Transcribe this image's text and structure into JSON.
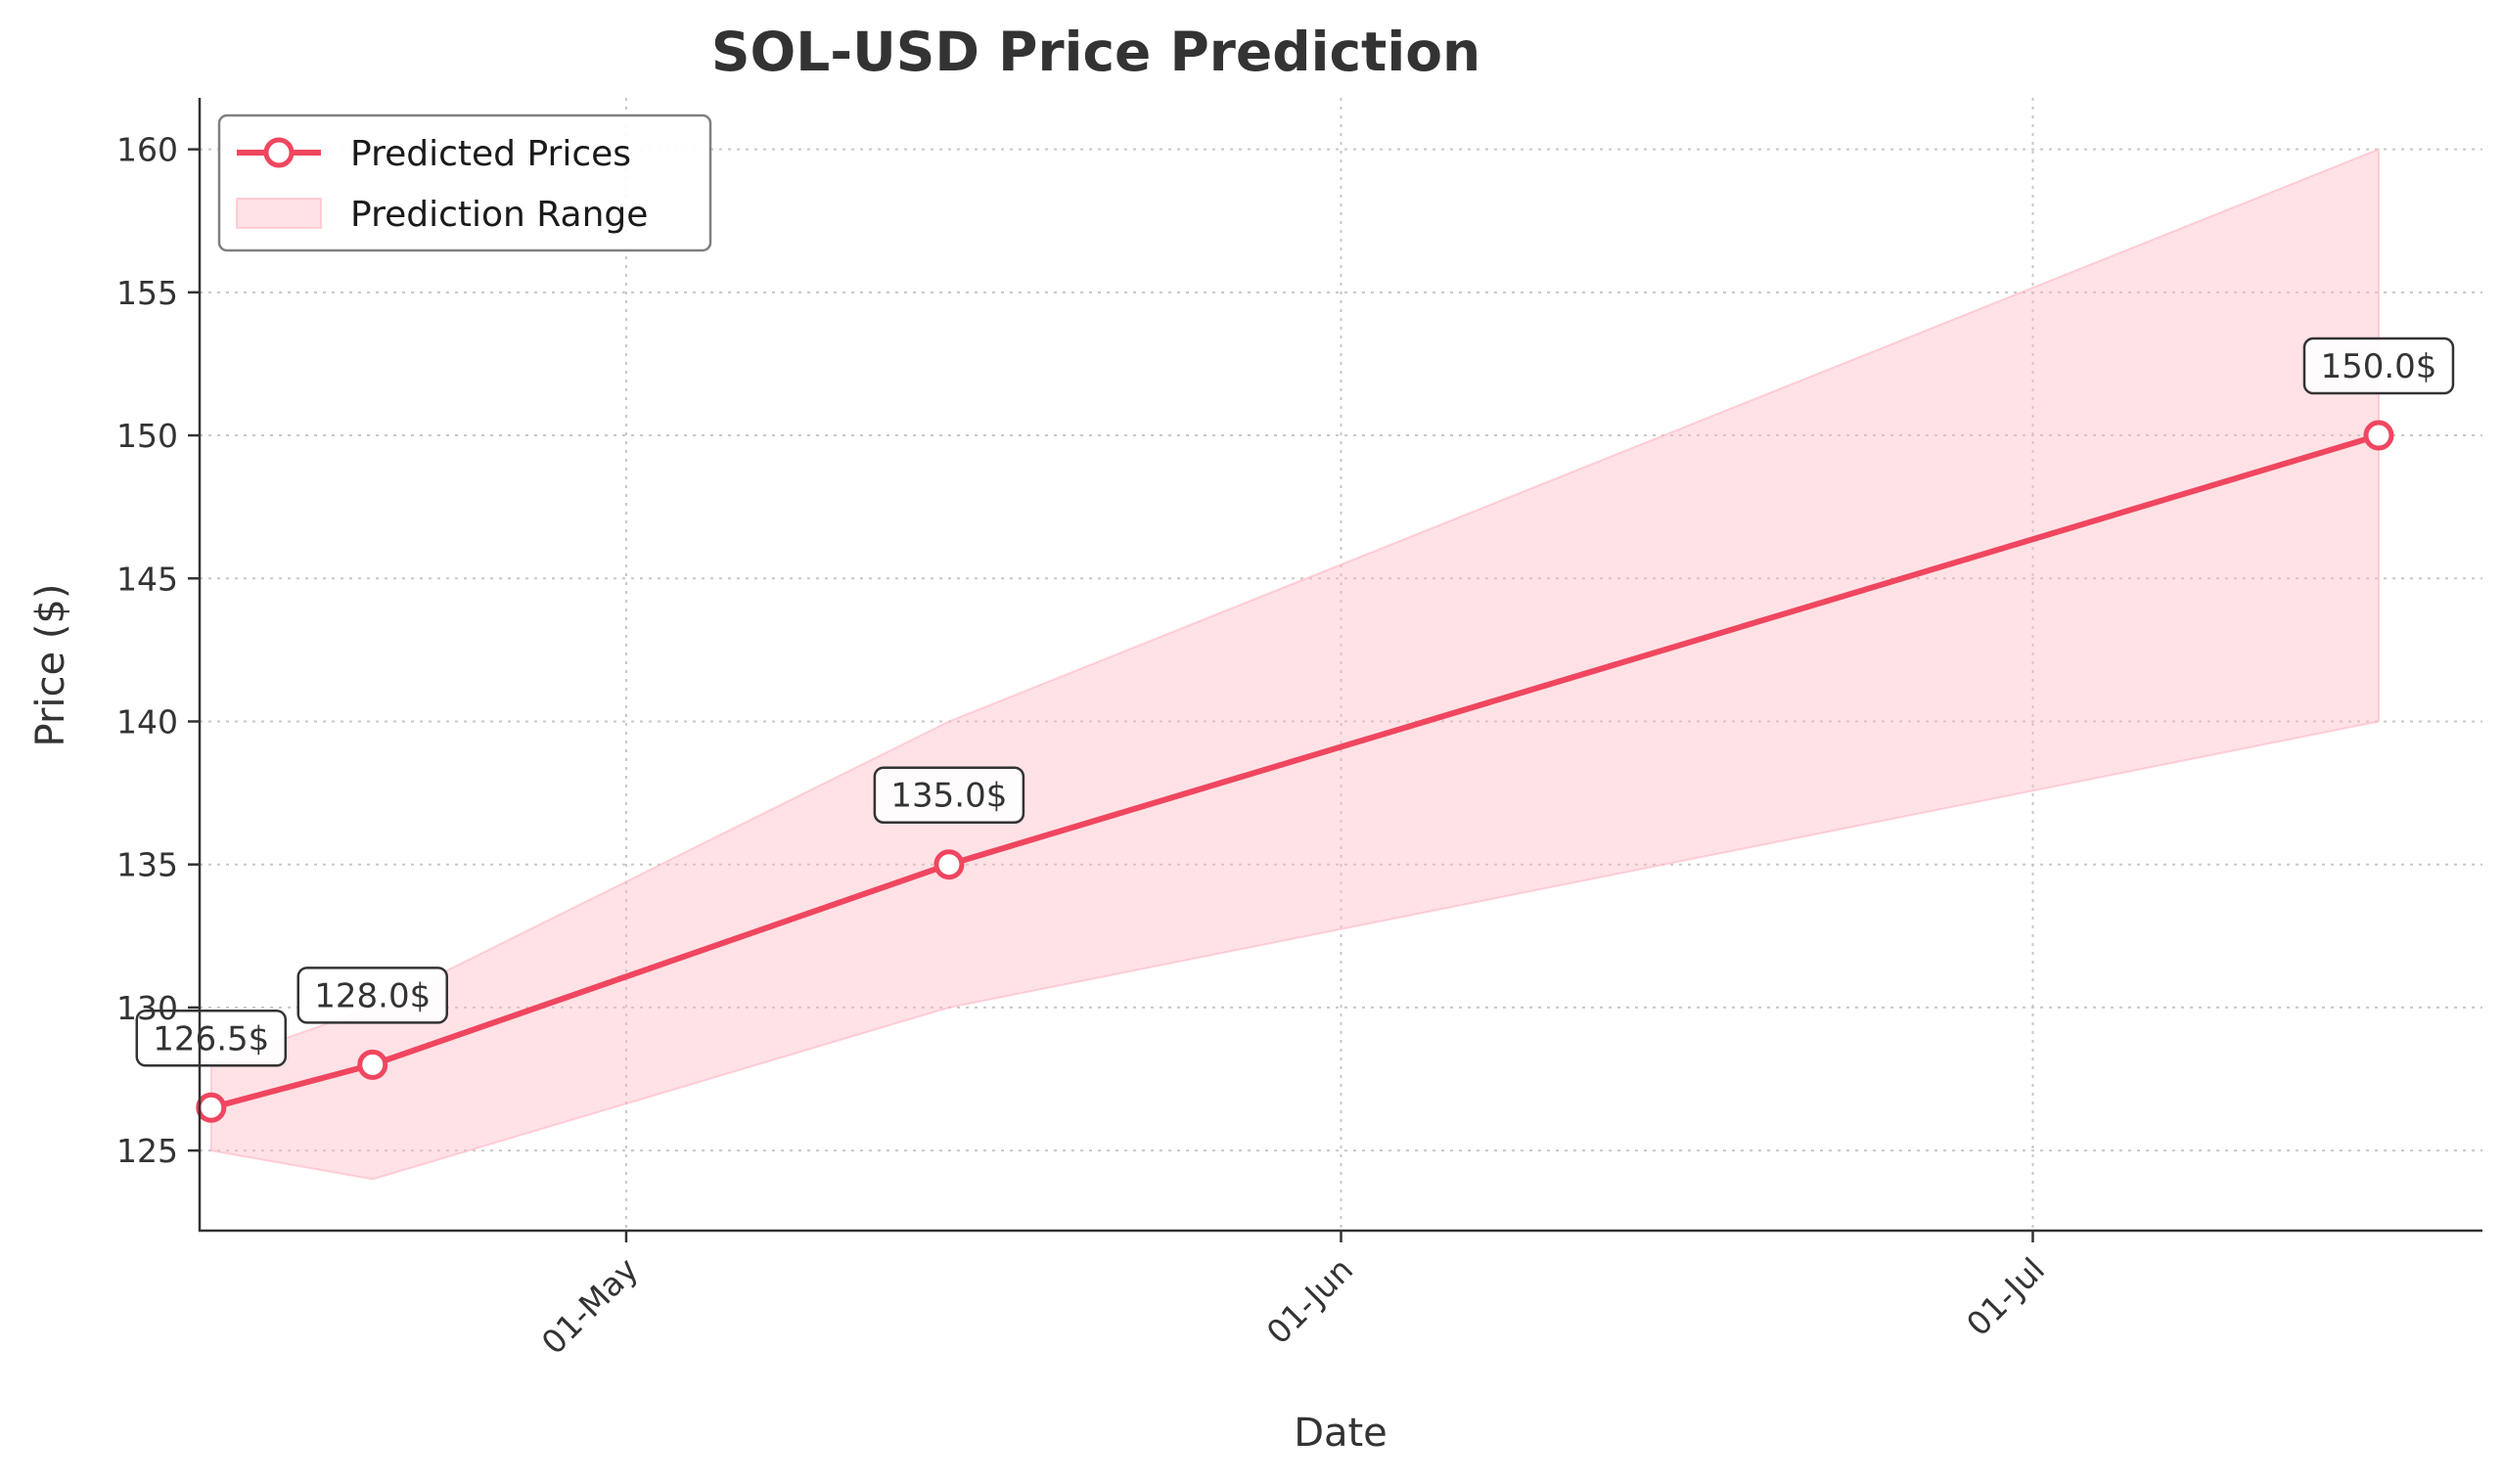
{
  "chart_data": {
    "type": "line",
    "title": "SOL-USD Price Prediction",
    "xlabel": "Date",
    "ylabel": "Price ($)",
    "x_tick_labels": [
      {
        "label": "01-May",
        "day": 0
      },
      {
        "label": "01-Jun",
        "day": 31
      },
      {
        "label": "01-Jul",
        "day": 61
      }
    ],
    "xlim": [
      -18.5,
      80.5
    ],
    "ylim": [
      122.2,
      161.8
    ],
    "y_ticks": [
      125,
      130,
      135,
      140,
      145,
      150,
      155,
      160
    ],
    "grid": true,
    "legend_position": "top-left",
    "legend": [
      "Predicted Prices",
      "Prediction Range"
    ],
    "series": [
      {
        "name": "Predicted Prices",
        "color": "#f0465f",
        "points": [
          {
            "date": "2024-04-13",
            "day": -18,
            "value": 126.5,
            "label": "126.5$"
          },
          {
            "date": "2024-04-20",
            "day": -11,
            "value": 128.0,
            "label": "128.0$"
          },
          {
            "date": "2024-05-15",
            "day": 14,
            "value": 135.0,
            "label": "135.0$"
          },
          {
            "date": "2024-07-16",
            "day": 76,
            "value": 150.0,
            "label": "150.0$"
          }
        ]
      },
      {
        "name": "Prediction Range",
        "color": "#ffb6c1",
        "lower": [
          125.0,
          124.0,
          130.0,
          140.0
        ],
        "upper": [
          128.0,
          130.0,
          140.0,
          160.0
        ]
      }
    ]
  }
}
